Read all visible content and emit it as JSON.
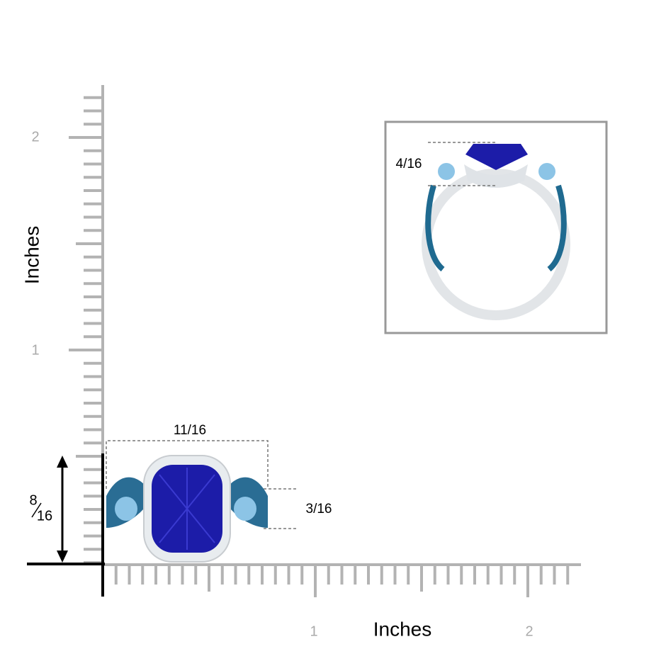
{
  "vertical_axis": {
    "label": "Inches",
    "tick_labels": [
      "2",
      "1"
    ]
  },
  "horizontal_axis": {
    "label": "Inches",
    "tick_labels": [
      "1",
      "2"
    ]
  },
  "measurements": {
    "width": "11/16",
    "band": "3/16",
    "height": {
      "numerator": "8",
      "denominator": "16"
    },
    "side_height": "4/16"
  }
}
